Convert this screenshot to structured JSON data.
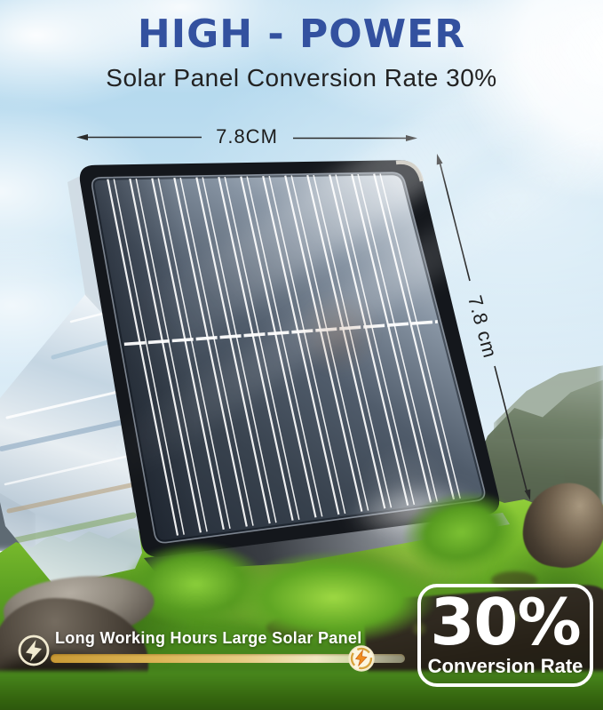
{
  "header": {
    "title": "HIGH - POWER",
    "subtitle": "Solar Panel Conversion Rate 30%"
  },
  "dimensions": {
    "width_label": "7.8CM",
    "height_label": "7.8 cm"
  },
  "badge": {
    "text": "Long Working Hours Large Solar Panel",
    "left_icon": "lightning-circle-icon",
    "right_icon": "lightning-recharge-icon"
  },
  "conversion_box": {
    "value": "30%",
    "label": "Conversion Rate"
  },
  "colors": {
    "title_blue": "#33519f",
    "subtitle_dark": "#222222",
    "dimension_text": "#1d1d1d",
    "badge_gold": "#d8a43e",
    "badge_text_white": "#ffffff",
    "panel_frame_black": "#16191e",
    "conversion_text_white": "#ffffff"
  }
}
